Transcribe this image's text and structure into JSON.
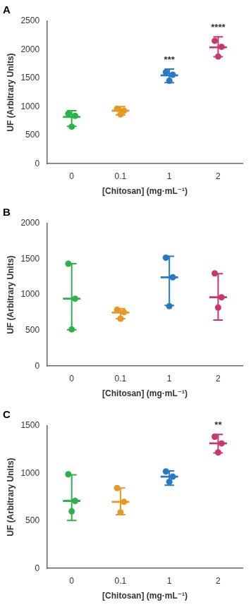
{
  "chart_data": [
    {
      "type": "scatter",
      "title": "A",
      "xlabel": "[Chitosan] (mg·mL⁻¹)",
      "ylabel": "UF (Arbitrary Units)",
      "categories": [
        "0",
        "0.1",
        "1",
        "2"
      ],
      "colors": [
        "#2db14b",
        "#e89820",
        "#2878c8",
        "#c8386e"
      ],
      "values": [
        820,
        930,
        1550,
        2040
      ],
      "points": [
        [
          875,
          840,
          650
        ],
        [
          965,
          930,
          865
        ],
        [
          1605,
          1560,
          1455
        ],
        [
          2155,
          2050,
          1880
        ]
      ],
      "error_low": [
        165,
        75,
        130,
        165
      ],
      "error_high": [
        110,
        70,
        110,
        185
      ],
      "ylim": [
        0,
        2500
      ],
      "yticks": [
        0,
        500,
        1000,
        1500,
        2000,
        2500
      ],
      "annotations": [
        {
          "category": "1",
          "text": "***"
        },
        {
          "category": "2",
          "text": "****"
        }
      ],
      "grid": false
    },
    {
      "type": "scatter",
      "title": "B",
      "xlabel": "[Chitosan] (mg·mL⁻¹)",
      "ylabel": "UF (Arbitrary Units)",
      "categories": [
        "0",
        "0.1",
        "1",
        "2"
      ],
      "colors": [
        "#2db14b",
        "#e89820",
        "#2878c8",
        "#c8386e"
      ],
      "values": [
        945,
        750,
        1245,
        965
      ],
      "points": [
        [
          1435,
          945,
          515
        ],
        [
          790,
          755,
          665
        ],
        [
          1520,
          1245,
          840
        ],
        [
          1300,
          965,
          820
        ]
      ],
      "error_low": [
        435,
        85,
        395,
        320
      ],
      "error_high": [
        490,
        55,
        295,
        330
      ],
      "ylim": [
        0,
        2000
      ],
      "yticks": [
        0,
        500,
        1000,
        1500,
        2000
      ],
      "annotations": [],
      "grid": false
    },
    {
      "type": "scatter",
      "title": "C",
      "xlabel": "[Chitosan] (mg·mL⁻¹)",
      "ylabel": "UF (Arbitrary Units)",
      "categories": [
        "0",
        "0.1",
        "1",
        "2"
      ],
      "colors": [
        "#2db14b",
        "#e89820",
        "#2878c8",
        "#c8386e"
      ],
      "values": [
        710,
        700,
        965,
        1315
      ],
      "points": [
        [
          990,
          710,
          600
        ],
        [
          845,
          700,
          590
        ],
        [
          1020,
          965,
          910
        ],
        [
          1385,
          1315,
          1220
        ]
      ],
      "error_low": [
        205,
        135,
        90,
        100
      ],
      "error_high": [
        275,
        145,
        60,
        95
      ],
      "ylim": [
        0,
        1500
      ],
      "yticks": [
        0,
        500,
        1000,
        1500
      ],
      "annotations": [
        {
          "category": "2",
          "text": "**"
        }
      ],
      "grid": false
    }
  ]
}
